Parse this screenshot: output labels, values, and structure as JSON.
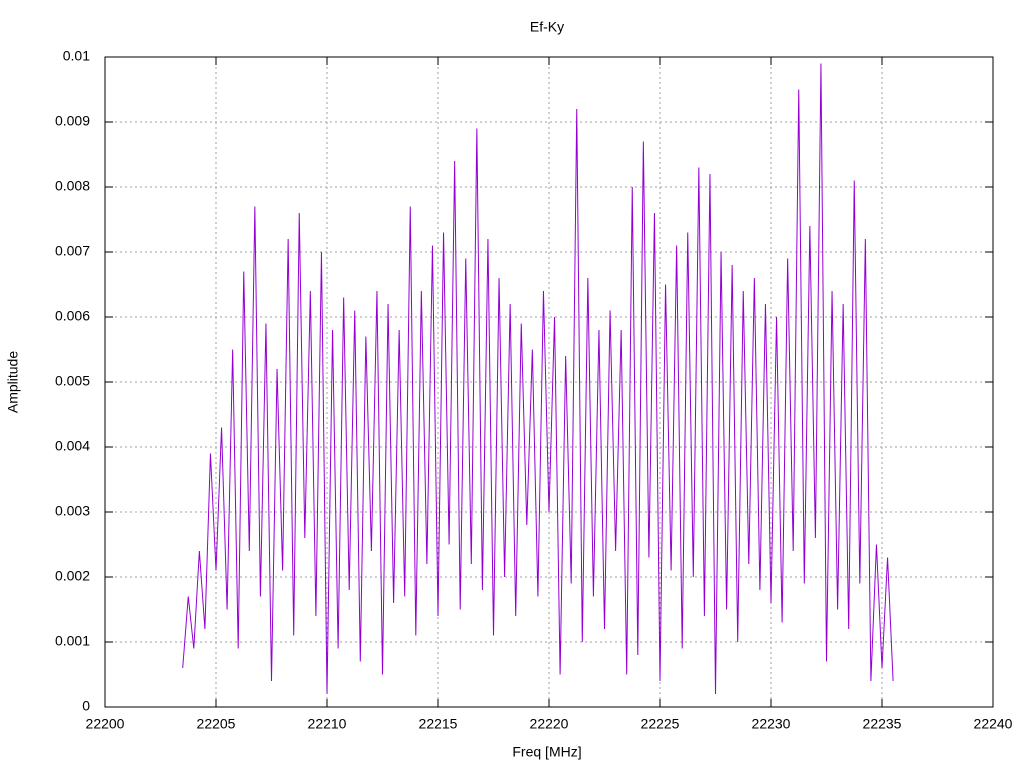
{
  "chart_data": {
    "type": "line",
    "title": "Ef-Ky",
    "x_label": "Freq [MHz]",
    "y_label": "Amplitude",
    "color": "#9400d3",
    "grid": true,
    "xlim": [
      22200,
      22240
    ],
    "xticks": [
      22200,
      22205,
      22210,
      22215,
      22220,
      22225,
      22230,
      22235,
      22240
    ],
    "ylim": [
      0,
      0.01
    ],
    "yticks": [
      0,
      0.001,
      0.002,
      0.003,
      0.004,
      0.005,
      0.006,
      0.007,
      0.008,
      0.009,
      0.01
    ],
    "x": [
      22203.5,
      22203.75,
      22204,
      22204.25,
      22204.5,
      22204.75,
      22205,
      22205.25,
      22205.5,
      22205.75,
      22206,
      22206.25,
      22206.5,
      22206.75,
      22207,
      22207.25,
      22207.5,
      22207.75,
      22208,
      22208.25,
      22208.5,
      22208.75,
      22209,
      22209.25,
      22209.5,
      22209.75,
      22210,
      22210.25,
      22210.5,
      22210.75,
      22211,
      22211.25,
      22211.5,
      22211.75,
      22212,
      22212.25,
      22212.5,
      22212.75,
      22213,
      22213.25,
      22213.5,
      22213.75,
      22214,
      22214.25,
      22214.5,
      22214.75,
      22215,
      22215.25,
      22215.5,
      22215.75,
      22216,
      22216.25,
      22216.5,
      22216.75,
      22217,
      22217.25,
      22217.5,
      22217.75,
      22218,
      22218.25,
      22218.5,
      22218.75,
      22219,
      22219.25,
      22219.5,
      22219.75,
      22220,
      22220.25,
      22220.5,
      22220.75,
      22221,
      22221.25,
      22221.5,
      22221.75,
      22222,
      22222.25,
      22222.5,
      22222.75,
      22223,
      22223.25,
      22223.5,
      22223.75,
      22224,
      22224.25,
      22224.5,
      22224.75,
      22225,
      22225.25,
      22225.5,
      22225.75,
      22226,
      22226.25,
      22226.5,
      22226.75,
      22227,
      22227.25,
      22227.5,
      22227.75,
      22228,
      22228.25,
      22228.5,
      22228.75,
      22229,
      22229.25,
      22229.5,
      22229.75,
      22230,
      22230.25,
      22230.5,
      22230.75,
      22231,
      22231.25,
      22231.5,
      22231.75,
      22232,
      22232.25,
      22232.5,
      22232.75,
      22233,
      22233.25,
      22233.5,
      22233.75,
      22234,
      22234.25,
      22234.5,
      22234.75,
      22235,
      22235.25,
      22235.5
    ],
    "values": [
      0.0006,
      0.0017,
      0.0009,
      0.0024,
      0.0012,
      0.0039,
      0.0021,
      0.0043,
      0.0015,
      0.0055,
      0.0009,
      0.0067,
      0.0024,
      0.0077,
      0.0017,
      0.0059,
      0.0004,
      0.0052,
      0.0021,
      0.0072,
      0.0011,
      0.0076,
      0.0026,
      0.0064,
      0.0014,
      0.007,
      0.0002,
      0.0058,
      0.0009,
      0.0063,
      0.0018,
      0.0061,
      0.0007,
      0.0057,
      0.0024,
      0.0064,
      0.0005,
      0.0062,
      0.0016,
      0.0058,
      0.0017,
      0.0077,
      0.0011,
      0.0064,
      0.0022,
      0.0071,
      0.0014,
      0.0073,
      0.0025,
      0.0084,
      0.0015,
      0.0069,
      0.0022,
      0.0089,
      0.0018,
      0.0072,
      0.0011,
      0.0066,
      0.002,
      0.0062,
      0.0014,
      0.0059,
      0.0028,
      0.0055,
      0.0017,
      0.0064,
      0.003,
      0.006,
      0.0005,
      0.0054,
      0.0019,
      0.0092,
      0.001,
      0.0066,
      0.0017,
      0.0058,
      0.0012,
      0.0061,
      0.0024,
      0.0058,
      0.0005,
      0.008,
      0.0008,
      0.0087,
      0.0023,
      0.0076,
      0.0004,
      0.0065,
      0.0021,
      0.0071,
      0.0009,
      0.0073,
      0.002,
      0.0083,
      0.0014,
      0.0082,
      0.0002,
      0.007,
      0.0015,
      0.0068,
      0.001,
      0.0064,
      0.0022,
      0.0066,
      0.0018,
      0.0062,
      0.0016,
      0.006,
      0.0013,
      0.0069,
      0.0024,
      0.0095,
      0.0019,
      0.0074,
      0.0026,
      0.0099,
      0.0007,
      0.0064,
      0.0015,
      0.0062,
      0.0012,
      0.0081,
      0.0019,
      0.0072,
      0.0004,
      0.0025,
      0.0006,
      0.0023,
      0.0004
    ]
  }
}
